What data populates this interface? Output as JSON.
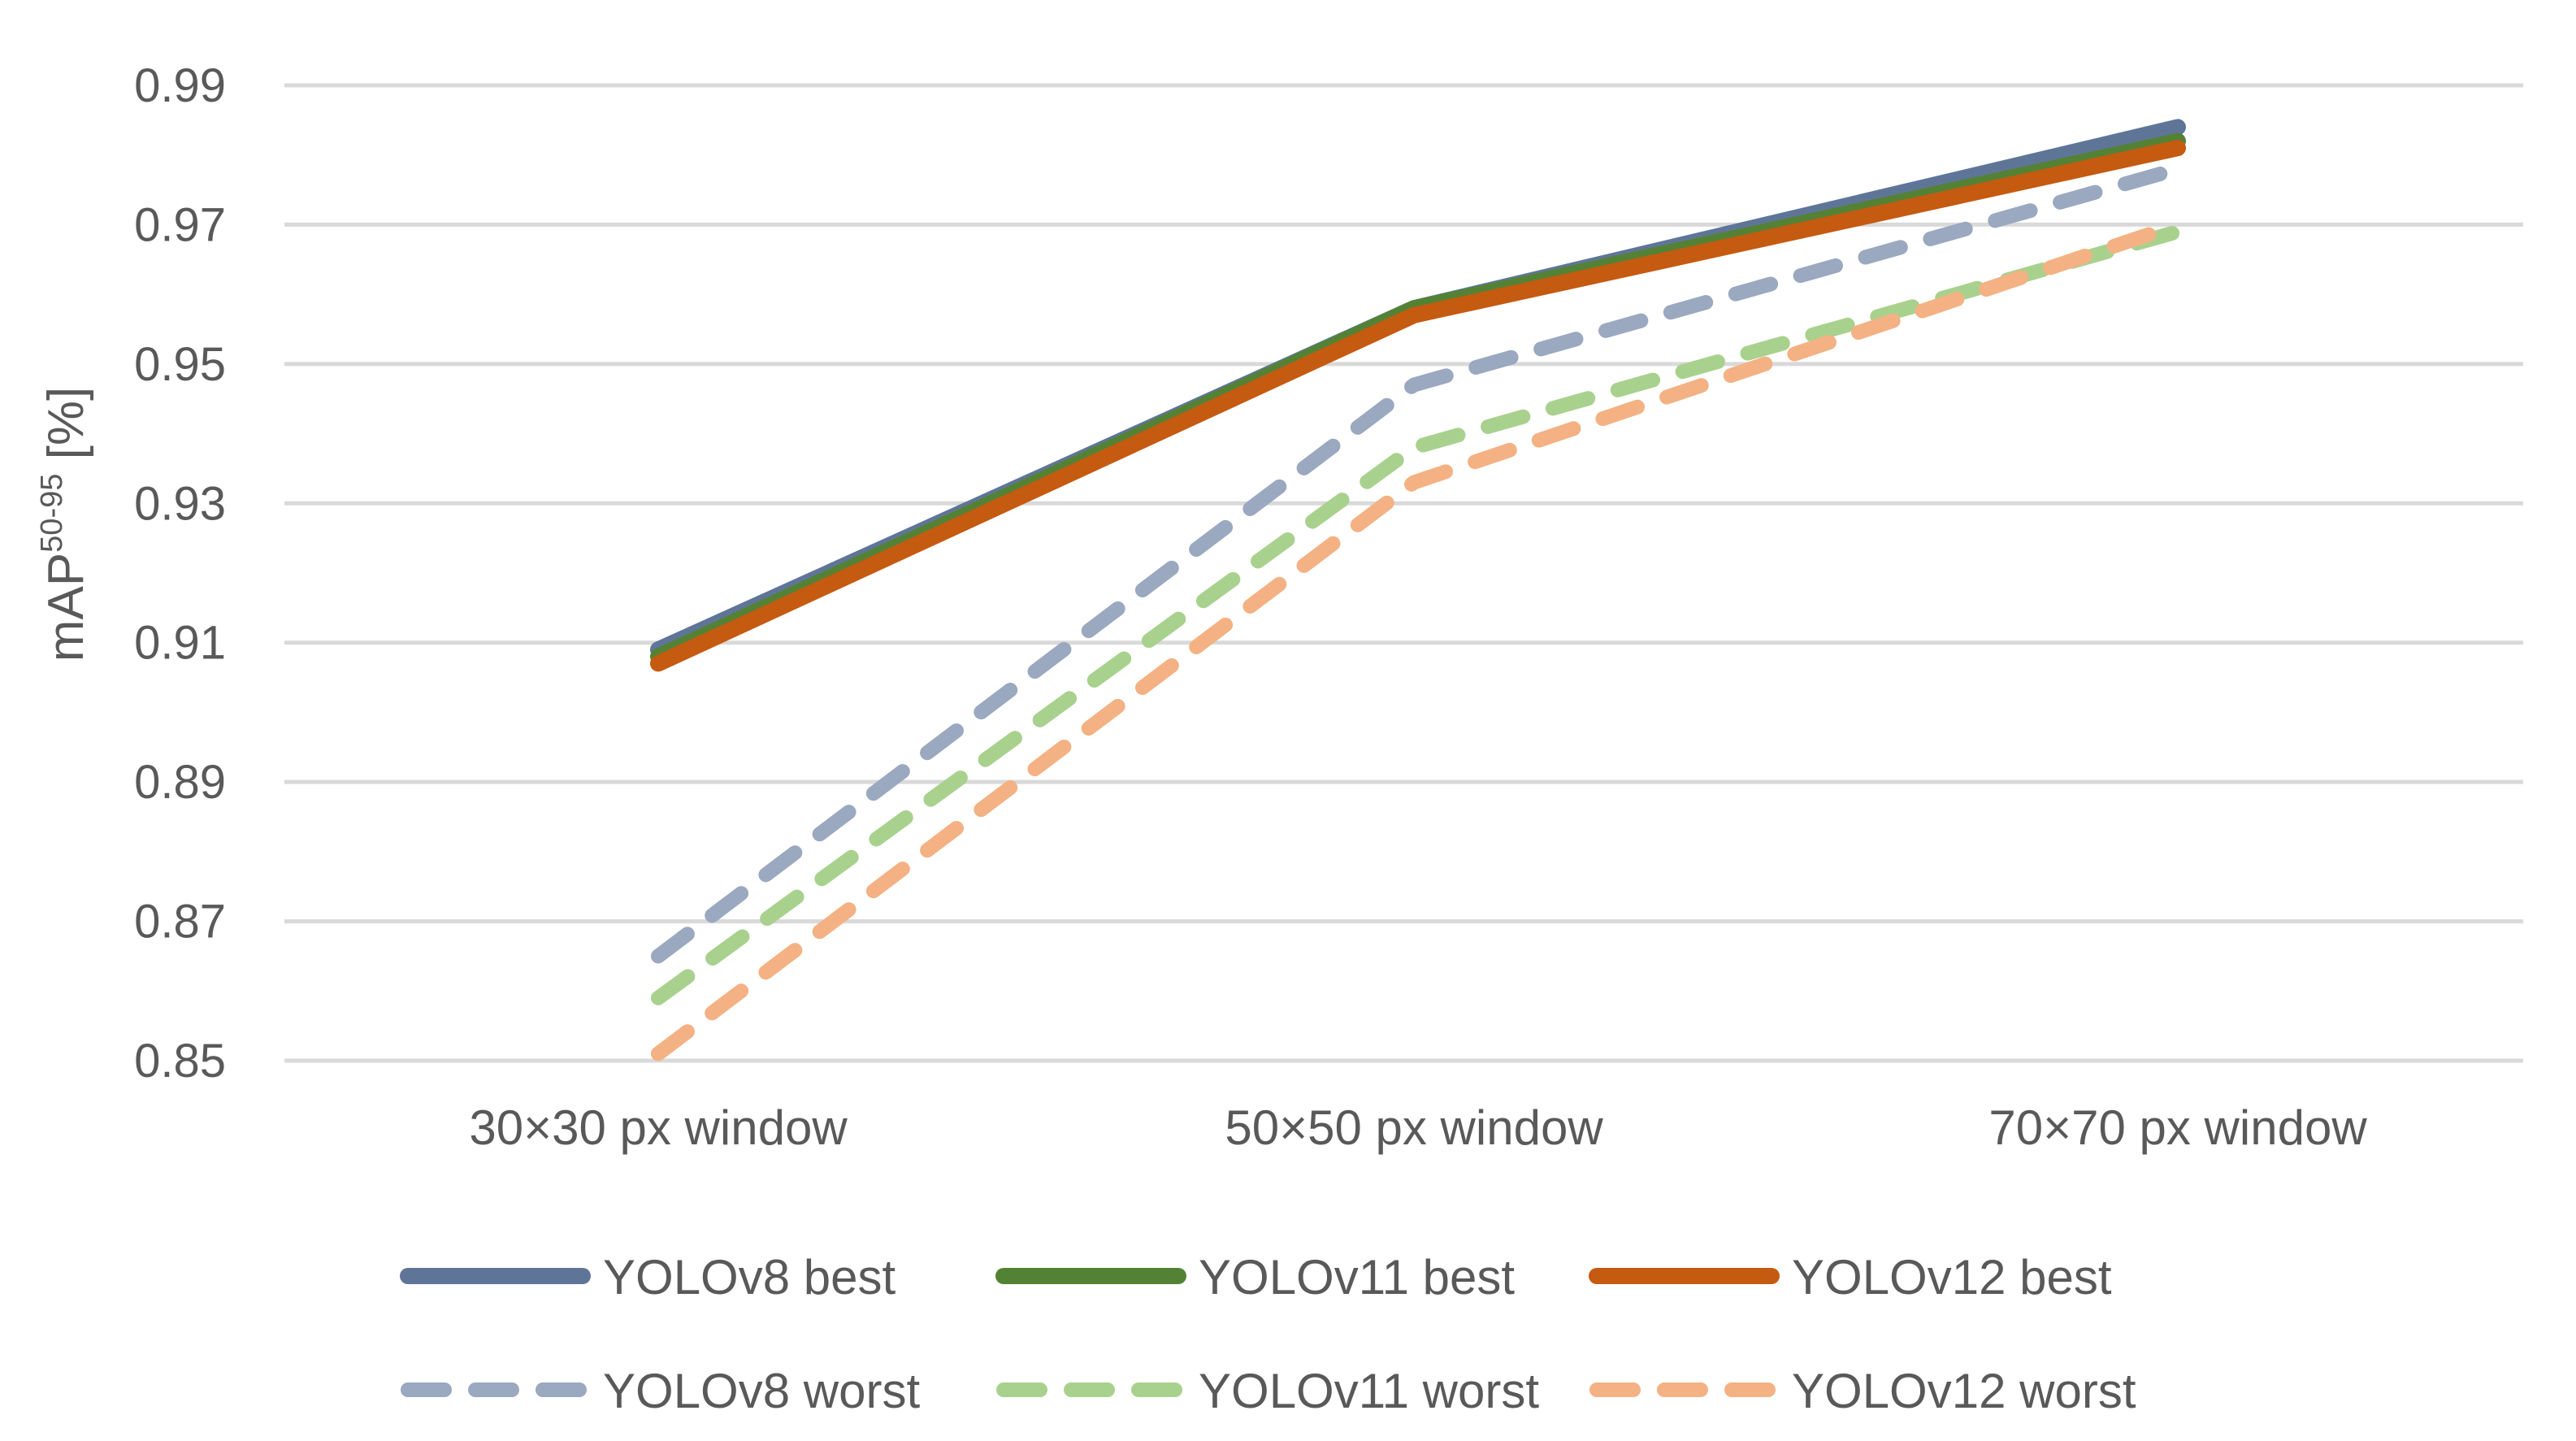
{
  "chart_data": {
    "type": "line",
    "title": "",
    "xlabel": "",
    "ylabel": {
      "main": "mAP",
      "superscript": "50-95",
      "unit": "[%]"
    },
    "categories": [
      "30×30 px window",
      "50×50 px window",
      "70×70 px window"
    ],
    "ylim": [
      0.85,
      0.99
    ],
    "yticks": [
      0.85,
      0.87,
      0.89,
      0.91,
      0.93,
      0.95,
      0.97,
      0.99
    ],
    "ytick_labels": [
      "0.85",
      "0.87",
      "0.89",
      "0.91",
      "0.93",
      "0.95",
      "0.97",
      "0.99"
    ],
    "grid": true,
    "legend_position": "bottom",
    "series": [
      {
        "name": "YOLOv8 best",
        "values": [
          0.909,
          0.958,
          0.984
        ],
        "color": "#5f7598",
        "dash": "solid"
      },
      {
        "name": "YOLOv11 best",
        "values": [
          0.908,
          0.958,
          0.982
        ],
        "color": "#548235",
        "dash": "solid"
      },
      {
        "name": "YOLOv12 best",
        "values": [
          0.907,
          0.957,
          0.981
        ],
        "color": "#c55a11",
        "dash": "solid"
      },
      {
        "name": "YOLOv8 worst",
        "values": [
          0.865,
          0.947,
          0.978
        ],
        "color": "#9aa8c0",
        "dash": "dashed"
      },
      {
        "name": "YOLOv11 worst",
        "values": [
          0.859,
          0.938,
          0.969
        ],
        "color": "#a9d18e",
        "dash": "dashed"
      },
      {
        "name": "YOLOv12 worst",
        "values": [
          0.851,
          0.933,
          0.97
        ],
        "color": "#f4b183",
        "dash": "dashed"
      }
    ]
  }
}
